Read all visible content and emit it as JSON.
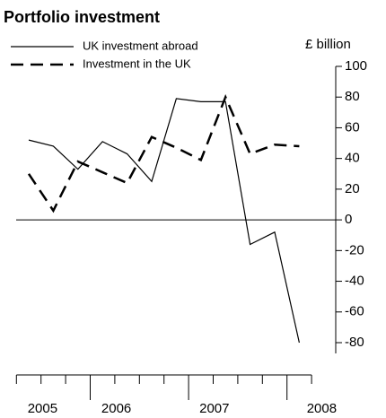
{
  "chart_data": {
    "type": "line",
    "title": "Portfolio investment",
    "y_label": "£ billion",
    "categories": [
      null,
      "2005",
      null,
      null,
      "2006",
      null,
      null,
      "2007",
      null,
      null,
      null,
      "2008"
    ],
    "series": [
      {
        "name": "UK investment abroad",
        "color": "#000000",
        "dash": "solid",
        "values": [
          52,
          48,
          33,
          51,
          43,
          25,
          79,
          77,
          77,
          -16,
          -8,
          -80
        ]
      },
      {
        "name": "Investment in the UK",
        "color": "#000000",
        "dash": "dashed",
        "values": [
          30,
          6,
          38,
          31,
          24,
          54,
          47,
          39,
          80,
          43,
          49,
          48
        ]
      }
    ],
    "ylim": [
      -80,
      100
    ],
    "yticks": [
      -80,
      -60,
      -40,
      -20,
      0,
      20,
      40,
      60,
      80,
      100
    ]
  }
}
